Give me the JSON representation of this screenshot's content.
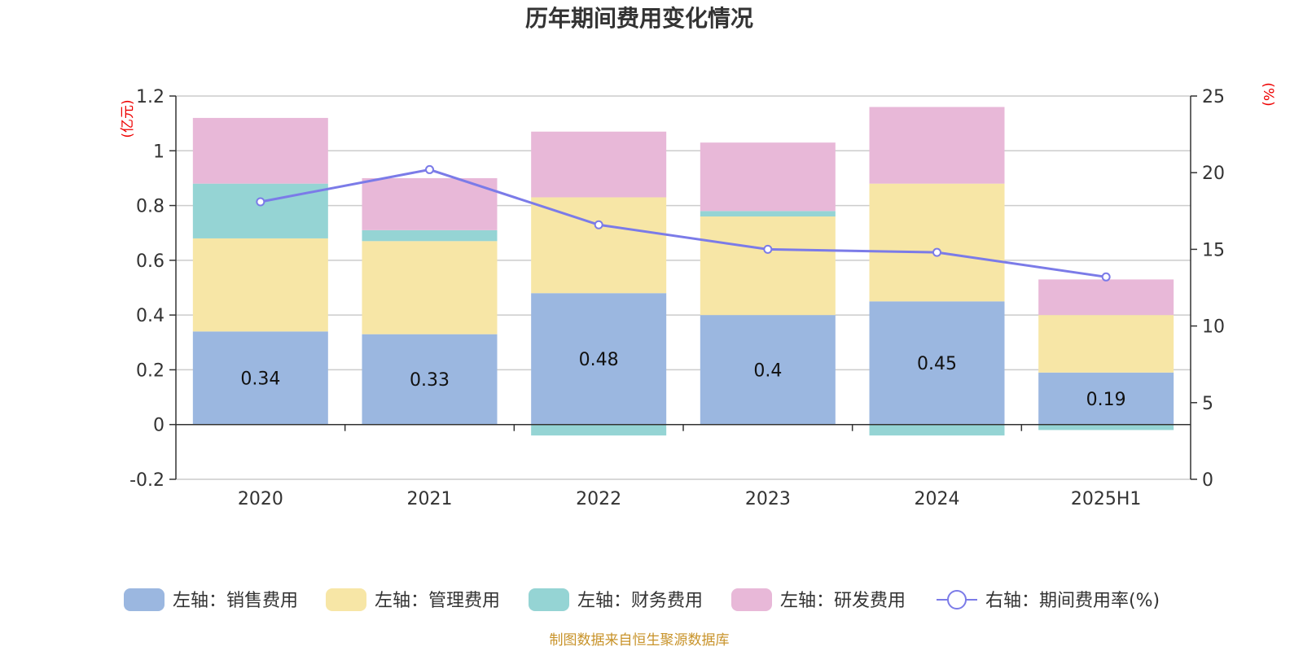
{
  "chart_data": {
    "type": "bar",
    "stacked": true,
    "title": "历年期间费用变化情况",
    "categories": [
      "2020",
      "2021",
      "2022",
      "2023",
      "2024",
      "2025H1"
    ],
    "left_axis": {
      "unit": "(亿元)",
      "ylim": [
        -0.2,
        1.2
      ],
      "ticks": [
        -0.2,
        0,
        0.2,
        0.4,
        0.6,
        0.8,
        1.0,
        1.2
      ],
      "tick_labels": [
        "-0.2",
        "0",
        "0.2",
        "0.4",
        "0.6",
        "0.8",
        "1",
        "1.2"
      ]
    },
    "right_axis": {
      "unit": "(%)",
      "ylim": [
        0,
        25
      ],
      "ticks": [
        0,
        5,
        10,
        15,
        20,
        25
      ],
      "tick_labels": [
        "0",
        "5",
        "10",
        "15",
        "20",
        "25"
      ]
    },
    "series": [
      {
        "name": "左轴：销售费用",
        "axis": "left",
        "type": "bar",
        "color": "#9bb7e0",
        "values": [
          0.34,
          0.33,
          0.48,
          0.4,
          0.45,
          0.19
        ],
        "labels": [
          "0.34",
          "0.33",
          "0.48",
          "0.4",
          "0.45",
          "0.19"
        ]
      },
      {
        "name": "左轴：管理费用",
        "axis": "left",
        "type": "bar",
        "color": "#f7e6a6",
        "values": [
          0.34,
          0.34,
          0.35,
          0.36,
          0.43,
          0.21
        ]
      },
      {
        "name": "左轴：财务费用",
        "axis": "left",
        "type": "bar",
        "color": "#95d4d4",
        "values": [
          0.2,
          0.04,
          -0.04,
          0.02,
          -0.04,
          -0.02
        ]
      },
      {
        "name": "左轴：研发费用",
        "axis": "left",
        "type": "bar",
        "color": "#e8b8d8",
        "values": [
          0.24,
          0.19,
          0.24,
          0.25,
          0.28,
          0.13
        ]
      },
      {
        "name": "右轴：期间费用率(%)",
        "axis": "right",
        "type": "line",
        "color": "#7b7be8",
        "values": [
          18.1,
          20.2,
          16.6,
          15.0,
          14.8,
          13.2
        ]
      }
    ],
    "grid": true,
    "legend_position": "bottom",
    "source": "制图数据来自恒生聚源数据库"
  }
}
